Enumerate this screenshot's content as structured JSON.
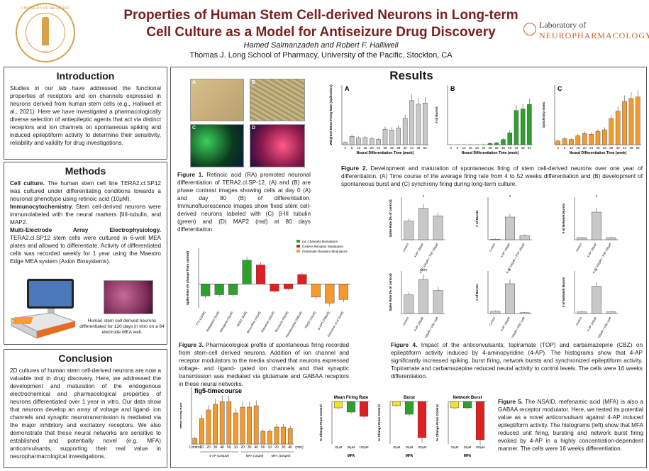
{
  "header": {
    "title_line1": "Properties of Human Stem Cell-derived Neurons in Long-term",
    "title_line2": "Cell Culture as a Model for Antiseizure Drug Discovery",
    "authors": "Hamed Salmanzadeh and Robert F. Halliwell",
    "affiliation": "Thomas J. Long School of Pharmacy, University of the Pacific, Stockton, CA",
    "seal_text": "UNIVERSITY OF THE PACIFIC",
    "seal_year": "1851",
    "lab_line1": "Laboratory of",
    "lab_line2": "NEUROPHARMACOLOGY"
  },
  "intro": {
    "heading": "Introduction",
    "body": "Studies in our lab have addressed the functional properties of receptors and ion channels expressed in neurons derived from human stem cells (e.g., Halliwell et al., 2021). Here we have investigated a pharmacologically diverse selection of antiepileptic agents that act via distinct receptors and ion channels on spontaneous spiking and induced epileptiform activity to determine their sensitivity, reliability and validity for drug investigations."
  },
  "methods": {
    "heading": "Methods",
    "p1_bold": "Cell culture.",
    "p1": " The human stem cell line TERA2.cl.SP12 was cultured under differentiating conditions towards a neuronal phenotype using retinoic acid (10μM).",
    "p2_bold": "Immunocytochemistry.",
    "p2": " Stem cell-derived neurons were immunolabeled with the neural markers βIII-tubulin, and MAP2.",
    "p3_bold": "Multi-Electrode Array Electrophysiology.",
    "p3": " TERA2.cl.SP12 stem cells were cultured in 6-well MEA plates and allowed to differentiate. Activity of differentiated cells was recorded weekly for 1 year using the Maestro Edge MEA system (Axion Biosystems).",
    "mea_caption": "Human stem cell derived neurons differentiated for 120 days in vitro on a 64 electrode MEA well."
  },
  "conclusion": {
    "heading": "Conclusion",
    "body": "2D cultures of human stem cell-derived neurons are now a valuable tool in drug discovery. Here, we addressed the development and maturation of the endogenous electrochemical and pharmacological properties of neurons differentiated over 1 year in vitro. Our data show that neurons develop an array of voltage and ligand- ion channels and synaptic neurotransmission is mediated via the major inhibitory and excitatory receptors. We also demonstrate that these neural networks are sensitive to established and potentially novel (e.g. MFA) anticonvulsants, supporting their real value in neuropharmacological investigations."
  },
  "results": {
    "heading": "Results",
    "fig1_caption_bold": "Figure 1.",
    "fig1_caption": " Retinoic acid (RA) promoted neuronal differentiation of TERA2.cl.SP-12. (A) and (B) are phase contrast images showing cells at day 0 (A) and day 80 (B) of differentiation. Immunofluorescence images show fixed stem cell-derived neurons labeled with (C) β-III tubulin (green) and (D) MAP2 (red) at 80 days differentiation.",
    "fig1_panels": [
      "A",
      "B",
      "C",
      "D"
    ],
    "fig2_caption_bold": "Figure 2.",
    "fig2_caption": " Development and maturation of spontaneous firing of stem cell-derived neurons over one year of differentiation. (A) Time course of the average firing rate from 4 to 52 weeks differentiation and (B) development of spontaneous burst and (C) synchrony firing during long-term culture.",
    "fig3_caption_bold": "Figure 3.",
    "fig3_caption": " Pharmacological profile of spontaneous firing recorded from stem-cell derived neurons. Addition of ion channel and receptor modulators to the media showed that neurons expressed voltage- and ligand- gated ion channels and that synaptic transmission was mediated via glutamate and GABAA receptors in these neural networks.",
    "fig4_caption_bold": "Figure 4.",
    "fig4_caption": " Impact of the anticonvulsants, topiramate (TOP) and carbamazepine (CBZ) on epileptiform activity induced by 4-aminopyridine (4-AP). The histograms show that 4-AP significantly increased spiking, burst firing, network bursts and synchronized epileptiform activity. Topiramate and carbamazepine reduced neural activity to control levels. The cells were 16 weeks differentiation.",
    "fig5_caption_bold": "Figure 5.",
    "fig5_caption": " The NSAID, mefenamic acid (MFA) is also a GABAA receptor modulator. Here, we tested its potential value as a novel anticonvulsant against 4-AP induced epileptiform activity. The histograms (left) show that MFA reduced unit firing, bursting and network burst firing evoked by 4-AP in a highly concentration-dependent manner. The cells were 16 weeks differentiation."
  },
  "chart_data": [
    {
      "type": "bar",
      "panel": "A",
      "ylabel": "Weighted Mean Firing Rate (Spikes/sec)",
      "xlabel": "Neural Differentiation Time (week)",
      "categories": [
        "4",
        "8",
        "12",
        "16",
        "20",
        "24",
        "28",
        "32",
        "36",
        "40",
        "44",
        "48",
        "52"
      ],
      "values": [
        10,
        35,
        28,
        30,
        25,
        22,
        65,
        62,
        70,
        110,
        185,
        170,
        175
      ],
      "ylim": [
        0,
        250
      ],
      "color": "#c8c8c8"
    },
    {
      "type": "bar",
      "panel": "B",
      "ylabel": "# of Bursts",
      "xlabel": "Neural Differentiation Time (week)",
      "categories": [
        "4",
        "8",
        "12",
        "16",
        "20",
        "24",
        "28",
        "32",
        "36",
        "40",
        "44",
        "48",
        "52"
      ],
      "values": [
        0,
        0,
        0,
        0,
        0,
        0,
        80,
        120,
        350,
        800,
        2300,
        2400,
        2700
      ],
      "ylim": [
        0,
        4000
      ],
      "color": "#2fa02f"
    },
    {
      "type": "bar",
      "panel": "C",
      "ylabel": "Synchrony Index",
      "xlabel": "Neural Differentiation Time (week)",
      "categories": [
        "4",
        "8",
        "12",
        "16",
        "20",
        "24",
        "28",
        "32",
        "36",
        "40",
        "44",
        "48",
        "52"
      ],
      "values": [
        0.05,
        0.08,
        0.07,
        0.12,
        0.15,
        0.14,
        0.18,
        0.2,
        0.35,
        0.45,
        0.58,
        0.62,
        0.64
      ],
      "ylim": [
        0,
        0.8
      ],
      "color": "#f59a2a"
    },
    {
      "type": "bar",
      "title": "Spike Rate (% change from control)",
      "categories": [
        "TTX (10nM)",
        "Retigabine (5μM)",
        "Nifedipine (10μM)",
        "XE991 (5μM)",
        "Bicuculline (10μM)",
        "Diazepam (10μM)",
        "Picrotoxin (50μM)",
        "Pentobarbital (100μM)",
        "DNQX (10μM)",
        "D-AP5 (100μM)",
        "Kynurenic acid (1mM)"
      ],
      "values": [
        -50,
        -45,
        -45,
        100,
        80,
        -30,
        -20,
        40,
        -55,
        -80,
        -65
      ],
      "groups": [
        "ion",
        "ion",
        "ion",
        "ion",
        "gaba",
        "gaba",
        "gaba",
        "gaba",
        "glu",
        "glu",
        "glu"
      ],
      "legend": [
        "Ion Channels Modulators",
        "GABAA Receptor Modulators",
        "Glutamate Receptor Modulators"
      ],
      "ylim": [
        -100,
        150
      ]
    },
    {
      "type": "bar",
      "panel": "fig4",
      "subplots": [
        {
          "ylabel": "Spike Rate (% of control)",
          "categories": [
            "Control",
            "4-AP 100μM",
            "4-AP 100μM + TOP 100μM"
          ],
          "values": [
            22,
            37,
            28
          ],
          "ylim": [
            0,
            50
          ],
          "sig": "*"
        },
        {
          "ylabel": "# of Bursts",
          "categories": [
            "Control",
            "4-AP 100μM",
            "4-AP 100μM + TOP 100μM"
          ],
          "values": [
            2,
            80,
            15
          ],
          "ylim": [
            0,
            150
          ],
          "sig": "*"
        },
        {
          "ylabel": "# of Network Bursts",
          "categories": [
            "Control",
            "4-AP 100μM",
            "4-AP 100μM + TOP 100μM"
          ],
          "values": [
            1,
            13,
            1
          ],
          "ylim": [
            0,
            20
          ],
          "sig": "*"
        },
        {
          "ylabel": "Spike Rate (% of control)",
          "categories": [
            "Control",
            "4-AP 100μM",
            "4-AP 100μM + CBZ 1μM"
          ],
          "values": [
            22,
            40,
            27
          ],
          "ylim": [
            0,
            50
          ],
          "sig": "****"
        },
        {
          "ylabel": "# of Bursts",
          "categories": [
            "Control",
            "4-AP 100μM",
            "4-AP 100μM + CBZ 1μM"
          ],
          "values": [
            8,
            105,
            3
          ],
          "ylim": [
            0,
            150
          ],
          "sig": "*"
        },
        {
          "ylabel": "# of Network Bursts",
          "categories": [
            "Control",
            "4-AP 100μM",
            "4-AP 100μM + CBZ 1μM"
          ],
          "values": [
            1,
            16,
            1
          ],
          "ylim": [
            0,
            25
          ],
          "sig": "*"
        }
      ]
    },
    {
      "type": "bar",
      "panel": "fig5-timecourse",
      "ylabel": "Mean Firing Rate",
      "unit": "(min)",
      "categories": [
        "Control",
        "10",
        "20",
        "30",
        "40",
        "50",
        "10",
        "20",
        "30",
        "40",
        "50",
        "10",
        "20",
        "30",
        "40"
      ],
      "values": [
        20,
        90,
        120,
        140,
        150,
        150,
        110,
        130,
        130,
        135,
        45,
        45,
        60,
        60,
        55
      ],
      "ylim": [
        0,
        200
      ],
      "groups": [
        "4-AP (100μM)",
        "MFA (10μM)",
        "MFA (100μM)"
      ],
      "color": "#f59a2a"
    },
    {
      "type": "bar",
      "panel": "fig5-mfa",
      "subplots": [
        {
          "title": "Mean Firing Rate",
          "ylabel": "% Change From Control",
          "categories": [
            "10μM",
            "30μM",
            "100μM"
          ],
          "values": [
            -15,
            -25,
            -35
          ],
          "ylim": [
            -100,
            0
          ],
          "xlabel": "MFA"
        },
        {
          "title": "Burst",
          "ylabel": "% Change From Control",
          "categories": [
            "10μM",
            "30μM",
            "100μM"
          ],
          "values": [
            -10,
            -30,
            -85
          ],
          "ylim": [
            -100,
            0
          ],
          "xlabel": "MFA"
        },
        {
          "title": "Network Burst",
          "ylabel": "% Change From Control",
          "categories": [
            "10μM",
            "30μM",
            "100μM"
          ],
          "values": [
            -15,
            -15,
            -90
          ],
          "ylim": [
            -100,
            0
          ],
          "xlabel": "MFA"
        }
      ]
    }
  ]
}
